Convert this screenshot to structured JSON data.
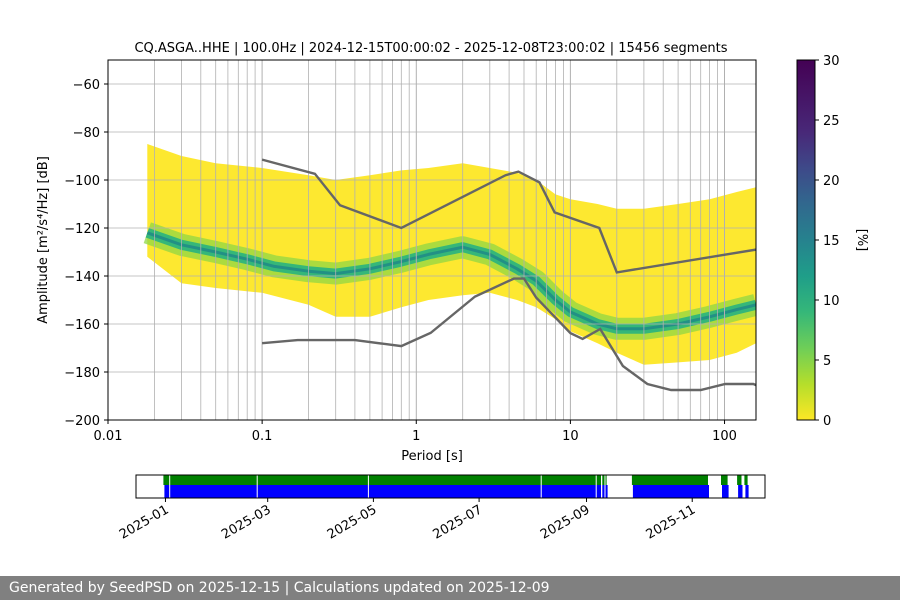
{
  "chart_data": [
    {
      "type": "heatmap",
      "title": "CQ.ASGA..HHE | 100.0Hz | 2024-12-15T00:00:02 - 2025-12-08T23:00:02 | 15456 segments",
      "xlabel": "Period [s]",
      "ylabel": "Amplitude [m²/s⁴/Hz] [dB]",
      "x_scale": "log",
      "xlim": [
        0.01,
        160
      ],
      "ylim": [
        -200,
        -50
      ],
      "x_ticks": [
        "0.01",
        "0.1",
        "1",
        "10",
        "100"
      ],
      "y_ticks": [
        "−60",
        "−80",
        "−100",
        "−120",
        "−140",
        "−160",
        "−180",
        "−200"
      ],
      "grid": true,
      "colorbar": {
        "label": "[%]",
        "range": [
          0,
          30
        ],
        "ticks": [
          "0",
          "5",
          "10",
          "15",
          "20",
          "25",
          "30"
        ],
        "colormap": "viridis"
      },
      "mode_curve": {
        "period": [
          0.018,
          0.03,
          0.05,
          0.08,
          0.12,
          0.2,
          0.3,
          0.5,
          0.8,
          1.2,
          2,
          3,
          4.5,
          6,
          8,
          10,
          15,
          20,
          30,
          50,
          80,
          120,
          160
        ],
        "db": [
          -122,
          -127,
          -130,
          -133,
          -136,
          -138,
          -139,
          -137,
          -134,
          -131,
          -128,
          -131,
          -137,
          -142,
          -150,
          -155,
          -160,
          -162,
          -162,
          -160,
          -157,
          -154,
          -152
        ]
      },
      "density_band": {
        "period": [
          0.018,
          0.03,
          0.05,
          0.1,
          0.2,
          0.3,
          0.5,
          0.8,
          1.2,
          2,
          3,
          4.5,
          6,
          8,
          10,
          15,
          20,
          30,
          50,
          80,
          120,
          160
        ],
        "upper_db": [
          -85,
          -90,
          -93,
          -95,
          -98,
          -100,
          -98,
          -96,
          -95,
          -93,
          -95,
          -97,
          -100,
          -106,
          -108,
          -110,
          -112,
          -112,
          -110,
          -108,
          -105,
          -103
        ],
        "lower_db": [
          -132,
          -143,
          -145,
          -147,
          -152,
          -157,
          -157,
          -153,
          -150,
          -148,
          -147,
          -150,
          -153,
          -158,
          -163,
          -168,
          -172,
          -177,
          -176,
          -175,
          -172,
          -168
        ]
      },
      "nhnm": {
        "period": [
          0.1,
          0.22,
          0.32,
          0.8,
          3.8,
          4.6,
          6.3,
          7.9,
          15.4,
          20
        ],
        "db": [
          -91.5,
          -97.4,
          -110.5,
          -120,
          -98,
          -96.5,
          -101,
          -113.5,
          -120,
          -138.5
        ],
        "extend_to": [
          160,
          -129
        ]
      },
      "nlnm": {
        "period": [
          0.1,
          0.17,
          0.4,
          0.8,
          1.24,
          2.4,
          4.3,
          5,
          6,
          10,
          12,
          15.6,
          21.9,
          31.6,
          45,
          70,
          101,
          154,
          160
        ],
        "db": [
          -168,
          -166.7,
          -166.7,
          -169.2,
          -163.7,
          -148.6,
          -141.1,
          -141.1,
          -149,
          -163.8,
          -166.2,
          -162.1,
          -177.5,
          -185,
          -187.5,
          -187.5,
          -185,
          -185,
          -185.5
        ]
      }
    },
    {
      "type": "timeline",
      "x_ticks": [
        "2025-01",
        "2025-03",
        "2025-05",
        "2025-07",
        "2025-09",
        "2025-11"
      ],
      "tick_days": [
        17,
        76,
        137,
        198,
        260,
        321
      ],
      "xlim_days": [
        0,
        199.1
      ],
      "data_spans_days": [
        [
          9,
          149.3
        ],
        [
          157.3,
          181.4
        ],
        [
          185.5,
          187.6
        ],
        [
          190.6,
          192
        ],
        [
          192.9,
          193.9
        ]
      ],
      "gaps_days": [
        [
          10.5,
          10.8
        ],
        [
          38.2,
          38.5
        ],
        [
          73.4,
          73.7
        ],
        [
          128.1,
          128.4
        ],
        [
          145.5,
          145.8
        ],
        [
          147.2,
          147.6
        ],
        [
          148.3,
          148.6
        ]
      ],
      "colors": {
        "data": "#0000ff",
        "processed": "#008000"
      }
    }
  ],
  "footer": {
    "text": "Generated by SeedPSD on 2025-12-15 | Calculations updated on 2025-12-09"
  }
}
